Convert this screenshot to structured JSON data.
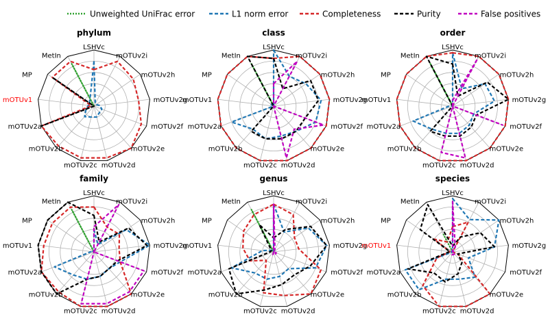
{
  "legend": {
    "entries": [
      {
        "label": "Unweighted UniFrac error",
        "color": "#2ca02c",
        "dash": "dotted"
      },
      {
        "label": "L1 norm error",
        "color": "#1f77b4",
        "dash": "dashed"
      },
      {
        "label": "Completeness",
        "color": "#d62728",
        "dash": "dashed"
      },
      {
        "label": "Purity",
        "color": "#000000",
        "dash": "dashed"
      },
      {
        "label": "False positives",
        "color": "#c000c0",
        "dash": "dashed"
      }
    ]
  },
  "axes": [
    "LSHVc",
    "mOTUv2i",
    "mOTUv2h",
    "mOTUv2g",
    "mOTUv2f",
    "mOTUv2e",
    "mOTUv2d",
    "mOTUv2c",
    "mOTUv2b",
    "mOTUv2a",
    "mOTUv1",
    "MP",
    "MetIn"
  ],
  "colors": {
    "grid": "#b0b0b0",
    "highlight_label": "#ff0000",
    "label": "#000000"
  },
  "chart_data": [
    {
      "type": "radar",
      "title": "phylum",
      "rlim": [
        0,
        1
      ],
      "grid": true,
      "highlight_axes": [
        "mOTUv1"
      ],
      "series": [
        {
          "name": "Unweighted UniFrac error",
          "values": [
            0,
            0,
            0,
            0,
            0,
            0,
            0,
            0,
            0,
            0,
            0,
            0,
            0.85
          ]
        },
        {
          "name": "L1 norm error",
          "values": [
            0.8,
            0.05,
            0.05,
            0.1,
            0.15,
            0.15,
            0.2,
            0.2,
            0.25,
            0.15,
            0.1,
            0.1,
            0.15
          ]
        },
        {
          "name": "Completeness",
          "values": [
            0.65,
            0.9,
            0.85,
            0.8,
            0.9,
            1,
            0.95,
            0.95,
            0.95,
            1,
            0.05,
            0.9,
            0.9
          ]
        },
        {
          "name": "Purity",
          "values": [
            0,
            0,
            0,
            0,
            0,
            0,
            0,
            0,
            0,
            1,
            0,
            0.9,
            0
          ]
        },
        {
          "name": "False positives",
          "values": [
            0,
            0,
            0,
            0,
            0,
            0,
            0,
            0,
            0,
            0,
            0,
            0,
            0
          ]
        }
      ]
    },
    {
      "type": "radar",
      "title": "class",
      "rlim": [
        0,
        1
      ],
      "grid": true,
      "highlight_axes": [],
      "series": [
        {
          "name": "Unweighted UniFrac error",
          "values": [
            0,
            0,
            0,
            0,
            0,
            0,
            0,
            0,
            0,
            0,
            0,
            0,
            0.85
          ]
        },
        {
          "name": "L1 norm error",
          "values": [
            1,
            0.6,
            0.7,
            0.85,
            0.8,
            0.6,
            0.55,
            0.6,
            0.55,
            0.8,
            0,
            0.05,
            0
          ]
        },
        {
          "name": "Completeness",
          "values": [
            0.85,
            1,
            1,
            1,
            1,
            1,
            1,
            1,
            1,
            1,
            1,
            1,
            1
          ]
        },
        {
          "name": "Purity",
          "values": [
            0.85,
            0.35,
            0.8,
            0.8,
            0.6,
            0.6,
            0.6,
            0.6,
            0.6,
            0,
            0,
            0,
            1
          ]
        },
        {
          "name": "False positives",
          "values": [
            0.4,
            0.9,
            0,
            0,
            0.95,
            0.55,
            0.95,
            0,
            0,
            0,
            0,
            0,
            0
          ]
        }
      ]
    },
    {
      "type": "radar",
      "title": "order",
      "rlim": [
        0,
        1
      ],
      "grid": true,
      "highlight_axes": [],
      "series": [
        {
          "name": "Unweighted UniFrac error",
          "values": [
            0,
            0,
            0,
            0,
            0,
            0,
            0,
            0,
            0,
            0,
            0,
            0,
            0.85
          ]
        },
        {
          "name": "L1 norm error",
          "values": [
            0.95,
            0.35,
            0.7,
            0.75,
            0.4,
            0.45,
            0.5,
            0.5,
            0.55,
            0.75,
            0.05,
            0,
            0
          ]
        },
        {
          "name": "Completeness",
          "values": [
            0.95,
            1,
            1,
            1,
            1,
            1,
            1,
            1,
            1,
            1,
            1,
            1,
            1
          ]
        },
        {
          "name": "Purity",
          "values": [
            0.75,
            0.2,
            0.75,
            1,
            0.45,
            0.5,
            0.55,
            0.55,
            0.6,
            0,
            0,
            0,
            1
          ]
        },
        {
          "name": "False positives",
          "values": [
            0.1,
            0.95,
            0,
            0,
            0.95,
            0,
            0.95,
            0.85,
            0,
            0,
            0,
            0,
            0
          ]
        }
      ]
    },
    {
      "type": "radar",
      "title": "family",
      "rlim": [
        0,
        1
      ],
      "grid": true,
      "highlight_axes": [],
      "series": [
        {
          "name": "Unweighted UniFrac error",
          "values": [
            0,
            0,
            0,
            0,
            0,
            0,
            0,
            0,
            0,
            0,
            0,
            0,
            0.85
          ]
        },
        {
          "name": "L1 norm error",
          "values": [
            0.4,
            0.15,
            0.7,
            1,
            0.5,
            0.4,
            0.45,
            0.5,
            0.55,
            0.75,
            0.05,
            0.05,
            0
          ]
        },
        {
          "name": "Completeness",
          "values": [
            0.8,
            0.5,
            0.55,
            0.45,
            0.5,
            1,
            1,
            1,
            0.95,
            1,
            0.9,
            0.9,
            0.9
          ]
        },
        {
          "name": "Purity",
          "values": [
            0.65,
            0.2,
            0.75,
            0.95,
            0.45,
            0.4,
            0.45,
            0.5,
            1,
            1,
            1,
            1,
            1
          ]
        },
        {
          "name": "False positives",
          "values": [
            0.45,
            0.95,
            0,
            0,
            0.95,
            0.95,
            0.95,
            0.95,
            0,
            0,
            0,
            0,
            0
          ]
        }
      ]
    },
    {
      "type": "radar",
      "title": "genus",
      "rlim": [
        0,
        1
      ],
      "grid": true,
      "highlight_axes": [],
      "series": [
        {
          "name": "Unweighted UniFrac error",
          "values": [
            0,
            0,
            0,
            0,
            0,
            0,
            0,
            0,
            0,
            0,
            0,
            0,
            0.85
          ]
        },
        {
          "name": "L1 norm error",
          "values": [
            0.85,
            0.4,
            0.75,
            0.95,
            0.8,
            0.4,
            0.45,
            0.5,
            0.5,
            0.8,
            0.2,
            0.05,
            0
          ]
        },
        {
          "name": "Completeness",
          "values": [
            0.85,
            0.75,
            0.45,
            0.45,
            0.9,
            1,
            0.8,
            0.75,
            0.2,
            0.45,
            0.55,
            0.65,
            0.75
          ]
        },
        {
          "name": "Purity",
          "values": [
            0.25,
            0.45,
            0.8,
            0.95,
            0.7,
            0.55,
            0.6,
            0.7,
            1,
            0.85,
            0.05,
            0.05,
            0.55
          ]
        },
        {
          "name": "False positives",
          "values": [
            0.85,
            0.05,
            0,
            0,
            0.05,
            0.05,
            0.05,
            0.05,
            0,
            0,
            0,
            0,
            0
          ]
        }
      ]
    },
    {
      "type": "radar",
      "title": "species",
      "rlim": [
        0,
        1
      ],
      "grid": true,
      "highlight_axes": [
        "mOTUv1"
      ],
      "series": [
        {
          "name": "Unweighted UniFrac error",
          "values": [
            0,
            0,
            0,
            0,
            0,
            0,
            0,
            0,
            0,
            0,
            0,
            0,
            0.35
          ]
        },
        {
          "name": "L1 norm error",
          "values": [
            0.95,
            0.65,
            1,
            0.75,
            0.3,
            0.6,
            0.5,
            0.5,
            0.9,
            0.9,
            0,
            0.05,
            0
          ]
        },
        {
          "name": "Completeness",
          "values": [
            0.45,
            0.6,
            0,
            0,
            0.1,
            1,
            1,
            1,
            0.8,
            0.3,
            0.05,
            0.4,
            0.2
          ]
        },
        {
          "name": "Purity",
          "values": [
            0.1,
            0.3,
            0.6,
            0.75,
            0.1,
            0.25,
            0.4,
            0.55,
            0.5,
            0.85,
            0.05,
            0.7,
            0.95
          ]
        },
        {
          "name": "False positives",
          "values": [
            0.9,
            0.1,
            0,
            0,
            0.05,
            0.05,
            0.05,
            0.05,
            0,
            0,
            0,
            0,
            0
          ]
        }
      ]
    }
  ]
}
